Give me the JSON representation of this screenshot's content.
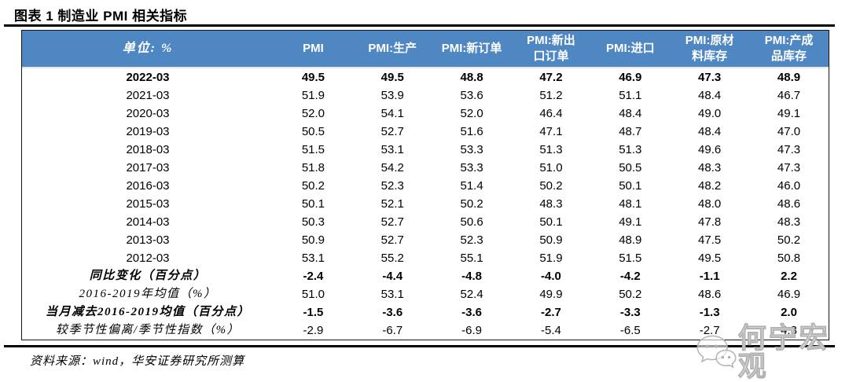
{
  "title": "图表 1  制造业 PMI 相关指标",
  "source": "资料来源：wind，华安证券研究所测算",
  "watermark": {
    "text": "何宁宏观",
    "icon": "wechat-bubbles-icon"
  },
  "colors": {
    "header_bg": "#4F87C3",
    "header_text": "#FFFFFF",
    "rule": "#000000"
  },
  "chart_data": {
    "type": "table",
    "unit_label": "单位: %",
    "columns": [
      "PMI",
      "PMI:生产",
      "PMI:新订单",
      "PMI:新出\n口订单",
      "PMI:进口",
      "PMI:原材\n料库存",
      "PMI:产成\n品库存"
    ],
    "rows": [
      {
        "label": "2022-03",
        "bold": true,
        "kai": false,
        "values": [
          "49.5",
          "49.5",
          "48.8",
          "47.2",
          "46.9",
          "47.3",
          "48.9"
        ]
      },
      {
        "label": "2021-03",
        "bold": false,
        "kai": false,
        "values": [
          "51.9",
          "53.9",
          "53.6",
          "51.2",
          "51.1",
          "48.4",
          "46.7"
        ]
      },
      {
        "label": "2020-03",
        "bold": false,
        "kai": false,
        "values": [
          "52.0",
          "54.1",
          "52.0",
          "46.4",
          "48.4",
          "49.0",
          "49.1"
        ]
      },
      {
        "label": "2019-03",
        "bold": false,
        "kai": false,
        "values": [
          "50.5",
          "52.7",
          "51.6",
          "47.1",
          "48.7",
          "48.4",
          "47.0"
        ]
      },
      {
        "label": "2018-03",
        "bold": false,
        "kai": false,
        "values": [
          "51.5",
          "53.1",
          "53.3",
          "51.3",
          "51.3",
          "49.6",
          "47.3"
        ]
      },
      {
        "label": "2017-03",
        "bold": false,
        "kai": false,
        "values": [
          "51.8",
          "54.2",
          "53.3",
          "51.0",
          "50.5",
          "48.3",
          "47.3"
        ]
      },
      {
        "label": "2016-03",
        "bold": false,
        "kai": false,
        "values": [
          "50.2",
          "52.3",
          "51.4",
          "50.2",
          "50.1",
          "48.2",
          "46.0"
        ]
      },
      {
        "label": "2015-03",
        "bold": false,
        "kai": false,
        "values": [
          "50.1",
          "52.1",
          "50.2",
          "48.3",
          "48.1",
          "48.0",
          "48.6"
        ]
      },
      {
        "label": "2014-03",
        "bold": false,
        "kai": false,
        "values": [
          "50.3",
          "52.7",
          "50.6",
          "50.1",
          "49.1",
          "47.8",
          "48.3"
        ]
      },
      {
        "label": "2013-03",
        "bold": false,
        "kai": false,
        "values": [
          "50.9",
          "52.7",
          "52.3",
          "50.9",
          "48.9",
          "47.5",
          "50.2"
        ]
      },
      {
        "label": "2012-03",
        "bold": false,
        "kai": false,
        "values": [
          "53.1",
          "55.2",
          "55.1",
          "51.9",
          "51.5",
          "49.5",
          "50.8"
        ]
      },
      {
        "label": "同比变化（百分点）",
        "bold": true,
        "kai": true,
        "values": [
          "-2.4",
          "-4.4",
          "-4.8",
          "-4.0",
          "-4.2",
          "-1.1",
          "2.2"
        ]
      },
      {
        "label": "2016-2019年均值（%）",
        "bold": false,
        "kai": true,
        "values": [
          "51.0",
          "53.1",
          "52.4",
          "49.9",
          "50.2",
          "48.6",
          "46.9"
        ]
      },
      {
        "label": "当月减去2016-2019均值（百分点）",
        "bold": true,
        "kai": true,
        "values": [
          "-1.5",
          "-3.6",
          "-3.6",
          "-2.7",
          "-3.3",
          "-1.3",
          "2.0"
        ]
      },
      {
        "label": "较季节性偏离/季节性指数（%）",
        "bold": false,
        "kai": true,
        "values": [
          "-2.9",
          "-6.7",
          "-6.9",
          "-5.4",
          "-6.5",
          "-2.7",
          "4.3"
        ]
      }
    ]
  }
}
